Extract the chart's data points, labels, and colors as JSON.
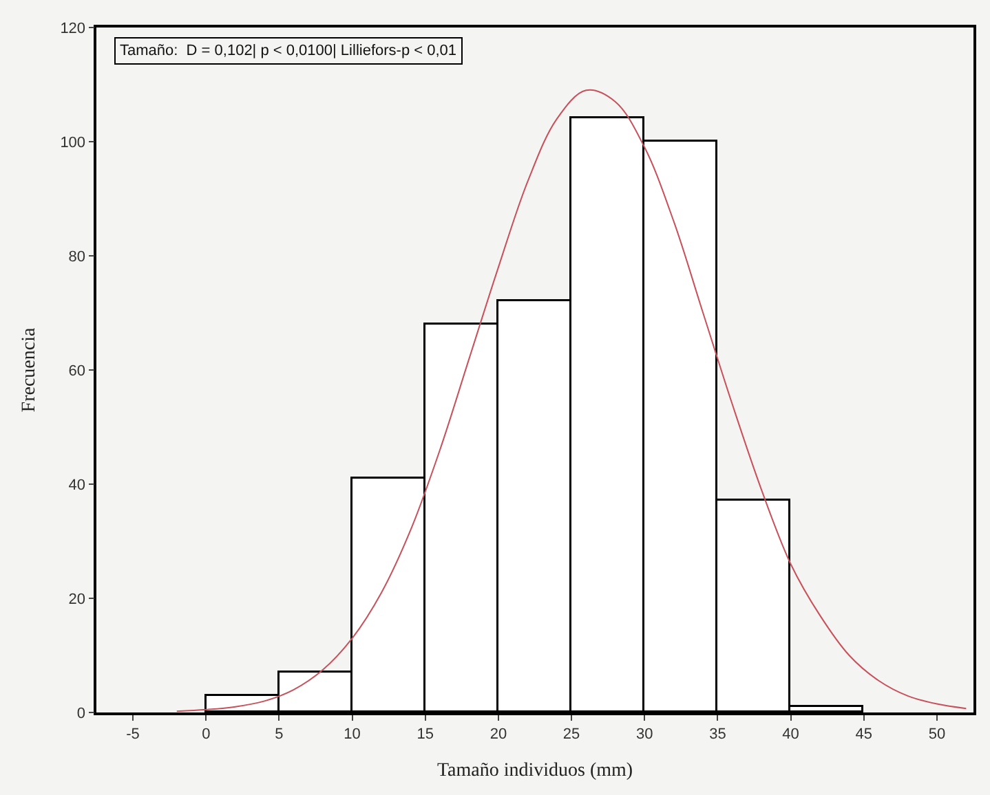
{
  "chart_data": {
    "type": "histogram",
    "xlabel": "Tamaño individuos (mm)",
    "ylabel": "Frecuencia",
    "bins": [
      0,
      5,
      10,
      15,
      20,
      25,
      30,
      35,
      40,
      45
    ],
    "values": [
      3,
      7,
      41,
      68,
      72,
      104,
      100,
      37,
      1
    ],
    "color": "#ffffff",
    "series": [
      {
        "type": "line",
        "color": "#c8505a",
        "x": [
          -2,
          0,
          2,
          4,
          6,
          8,
          10,
          12,
          14,
          16,
          18,
          20,
          22,
          24,
          26,
          28,
          30,
          32,
          34,
          36,
          38,
          40,
          42,
          44,
          46,
          48,
          50,
          52
        ],
        "values": [
          0.2,
          0.5,
          1,
          2,
          4,
          7.5,
          13,
          21,
          32,
          46,
          62,
          78,
          93,
          104,
          109,
          107,
          99,
          86,
          70,
          54,
          39,
          26,
          17,
          10,
          5.6,
          2.9,
          1.5,
          0.7
        ]
      }
    ],
    "annotations": [
      "Tamaño:  D = 0,102| p < 0,0100| Lilliefors-p < 0,01"
    ],
    "xlim": [
      -7.5,
      52.5
    ],
    "ylim": [
      0,
      120
    ],
    "xticks": [
      -5,
      0,
      5,
      10,
      15,
      20,
      25,
      30,
      35,
      40,
      45,
      50
    ],
    "yticks": [
      0,
      20,
      40,
      60,
      80,
      100,
      120
    ],
    "grid": false
  }
}
